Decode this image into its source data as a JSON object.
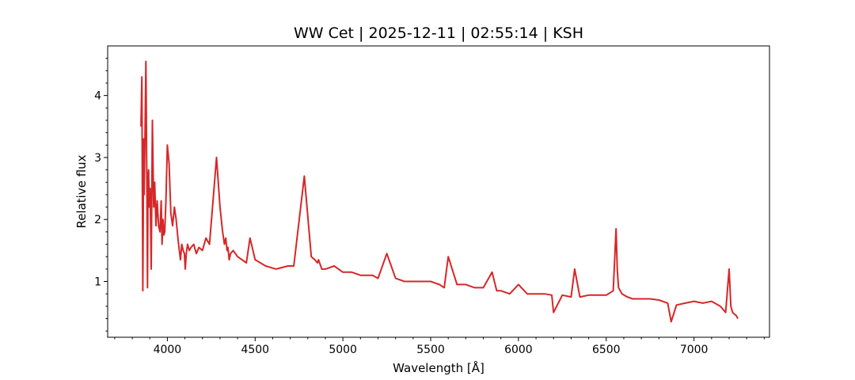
{
  "chart_data": {
    "type": "line",
    "title": "WW Cet | 2025-12-11 | 02:55:14 | KSH",
    "xlabel": "Wavelength [Å]",
    "ylabel": "Relative flux",
    "xlim": [
      3660,
      7430
    ],
    "ylim": [
      0.1,
      4.8
    ],
    "x_ticks": [
      4000,
      4500,
      5000,
      5500,
      6000,
      6500,
      7000
    ],
    "x_tick_labels": [
      "4000",
      "4500",
      "5000",
      "5500",
      "6000",
      "6500",
      "7000"
    ],
    "y_ticks": [
      1,
      2,
      3,
      4
    ],
    "y_tick_labels": [
      "1",
      "2",
      "3",
      "4"
    ],
    "grid": false,
    "line_color": "#d62728",
    "series": [
      {
        "x": [
          3850,
          3855,
          3860,
          3865,
          3868,
          3872,
          3878,
          3883,
          3887,
          3890,
          3893,
          3897,
          3902,
          3908,
          3915,
          3922,
          3928,
          3935,
          3942,
          3950,
          3958,
          3965,
          3970,
          3975,
          3980,
          3985,
          3992,
          4000,
          4010,
          4020,
          4030,
          4040,
          4050,
          4060,
          4068,
          4075,
          4082,
          4090,
          4097,
          4102,
          4108,
          4115,
          4125,
          4135,
          4150,
          4165,
          4180,
          4200,
          4220,
          4240,
          4260,
          4280,
          4300,
          4315,
          4325,
          4333,
          4340,
          4345,
          4352,
          4360,
          4375,
          4400,
          4450,
          4471,
          4500,
          4560,
          4620,
          4686,
          4720,
          4780,
          4820,
          4840,
          4855,
          4861,
          4867,
          4880,
          4900,
          4950,
          5000,
          5050,
          5100,
          5169,
          5200,
          5250,
          5300,
          5350,
          5400,
          5450,
          5500,
          5550,
          5577,
          5600,
          5650,
          5700,
          5750,
          5800,
          5850,
          5876,
          5900,
          5950,
          6000,
          6050,
          6100,
          6150,
          6190,
          6200,
          6250,
          6300,
          6320,
          6350,
          6400,
          6450,
          6500,
          6540,
          6556,
          6563,
          6570,
          6590,
          6620,
          6650,
          6700,
          6750,
          6800,
          6850,
          6870,
          6900,
          6950,
          7000,
          7050,
          7100,
          7150,
          7180,
          7200,
          7210,
          7220,
          7240,
          7250
        ],
        "y": [
          3.5,
          4.3,
          0.85,
          3.3,
          2.4,
          3.2,
          4.55,
          2.6,
          0.9,
          2.7,
          2.8,
          2.2,
          2.5,
          1.2,
          3.6,
          2.2,
          2.6,
          1.9,
          2.3,
          1.9,
          1.8,
          2.3,
          1.6,
          2.0,
          1.75,
          1.8,
          2.3,
          3.2,
          2.9,
          2.1,
          1.9,
          2.2,
          2.0,
          1.7,
          1.5,
          1.35,
          1.6,
          1.5,
          1.45,
          1.2,
          1.45,
          1.6,
          1.5,
          1.55,
          1.6,
          1.45,
          1.55,
          1.5,
          1.7,
          1.6,
          2.3,
          3.0,
          2.2,
          1.8,
          1.6,
          1.7,
          1.5,
          1.55,
          1.35,
          1.45,
          1.5,
          1.4,
          1.3,
          1.7,
          1.35,
          1.25,
          1.2,
          1.25,
          1.25,
          2.7,
          1.4,
          1.35,
          1.3,
          1.35,
          1.3,
          1.2,
          1.2,
          1.25,
          1.15,
          1.15,
          1.1,
          1.1,
          1.05,
          1.45,
          1.05,
          1.0,
          1.0,
          1.0,
          1.0,
          0.95,
          0.9,
          1.4,
          0.95,
          0.95,
          0.9,
          0.9,
          1.15,
          0.85,
          0.85,
          0.8,
          0.95,
          0.8,
          0.8,
          0.8,
          0.78,
          0.5,
          0.78,
          0.75,
          1.2,
          0.75,
          0.78,
          0.78,
          0.78,
          0.85,
          1.85,
          1.2,
          0.9,
          0.8,
          0.75,
          0.72,
          0.72,
          0.72,
          0.7,
          0.65,
          0.35,
          0.62,
          0.65,
          0.68,
          0.65,
          0.68,
          0.6,
          0.5,
          1.2,
          0.6,
          0.5,
          0.45,
          0.4
        ]
      }
    ]
  }
}
